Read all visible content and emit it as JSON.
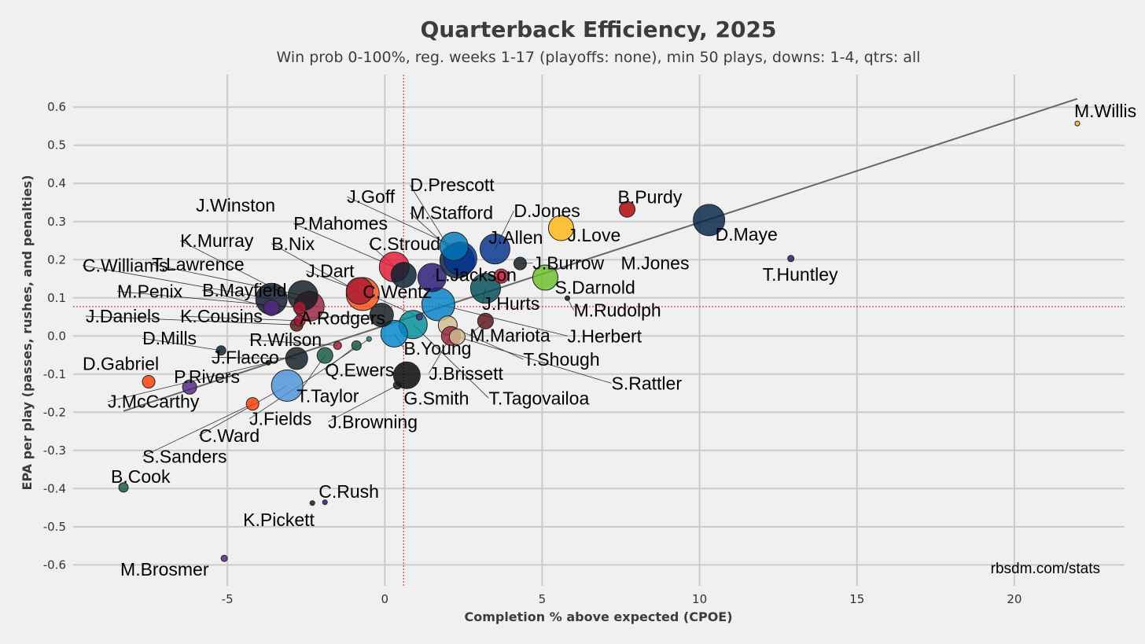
{
  "chart_data": {
    "type": "scatter",
    "title": "Quarterback Efficiency, 2025",
    "subtitle": "Win prob 0-100%, reg. weeks 1-17 (playoffs: none), min 50 plays, downs: 1-4, qtrs: all",
    "xlabel": "Completion % above expected (CPOE)",
    "ylabel": "EPA per play (passes, rushes, and penalties)",
    "credit": "rbsdm.com/stats",
    "xlim": [
      -9.9,
      23.5
    ],
    "ylim": [
      -0.655,
      0.685
    ],
    "xticks": [
      -5,
      0,
      5,
      10,
      15,
      20
    ],
    "xtick_labels": [
      "-5",
      "0",
      "5",
      "10",
      "15",
      "20"
    ],
    "yticks": [
      0.6,
      0.5,
      0.4,
      0.3,
      0.2,
      0.1,
      0.0,
      -0.1,
      -0.2,
      -0.3,
      -0.4,
      -0.5,
      -0.6
    ],
    "ytick_labels": [
      "0.6",
      "0.5",
      "0.4",
      "0.3",
      "0.2",
      "0.1",
      "0.0",
      "-0.1",
      "-0.2",
      "-0.3",
      "-0.4",
      "-0.5",
      "-0.6"
    ],
    "mean_x": 0.6,
    "mean_y": 0.077,
    "trend": {
      "x1": -8.3,
      "y1": -0.197,
      "x2": 22.0,
      "y2": 0.622
    },
    "points": [
      {
        "name": "M.Willis",
        "cpoe": 22.0,
        "epa": 0.557,
        "size": 3,
        "color": "#ffb612"
      },
      {
        "name": "D.Maye",
        "cpoe": 10.3,
        "epa": 0.304,
        "size": 20,
        "color": "#002244"
      },
      {
        "name": "B.Purdy",
        "cpoe": 7.7,
        "epa": 0.332,
        "size": 10,
        "color": "#aa0000"
      },
      {
        "name": "T.Huntley",
        "cpoe": 12.9,
        "epa": 0.203,
        "size": 4,
        "color": "#241773"
      },
      {
        "name": "J.Love",
        "cpoe": 5.6,
        "epa": 0.283,
        "size": 16,
        "color": "#ffb612"
      },
      {
        "name": "D.Jones",
        "cpoe": 3.5,
        "epa": 0.228,
        "size": 19,
        "color": "#003087"
      },
      {
        "name": "J.Burrow",
        "cpoe": 4.3,
        "epa": 0.19,
        "size": 8,
        "color": "#101820"
      },
      {
        "name": "S.Darnold",
        "cpoe": 5.1,
        "epa": 0.153,
        "size": 16,
        "color": "#69be28"
      },
      {
        "name": "M.Rudolph",
        "cpoe": 5.8,
        "epa": 0.099,
        "size": 3,
        "color": "#101820"
      },
      {
        "name": "M.Jones",
        "cpoe": 3.7,
        "epa": 0.157,
        "size": 9,
        "color": "#c60c30"
      },
      {
        "name": "J.Hurts",
        "cpoe": 3.2,
        "epa": 0.125,
        "size": 19,
        "color": "#004c54"
      },
      {
        "name": "J.Herbert",
        "cpoe": 1.7,
        "epa": 0.083,
        "size": 21,
        "color": "#0080c6"
      },
      {
        "name": "J.Goff",
        "cpoe": 2.2,
        "epa": 0.235,
        "size": 18,
        "color": "#0076b6"
      },
      {
        "name": "D.Prescott",
        "cpoe": 2.3,
        "epa": 0.197,
        "size": 22,
        "color": "#041e42"
      },
      {
        "name": "M.Stafford",
        "cpoe": 2.4,
        "epa": 0.203,
        "size": 21,
        "color": "#003594"
      },
      {
        "name": "L.Jackson",
        "cpoe": 1.5,
        "epa": 0.153,
        "size": 18,
        "color": "#241773"
      },
      {
        "name": "C.Stroud",
        "cpoe": 0.6,
        "epa": 0.16,
        "size": 16,
        "color": "#03202f"
      },
      {
        "name": "P.Mahomes",
        "cpoe": 0.3,
        "epa": 0.181,
        "size": 19,
        "color": "#e31837"
      },
      {
        "name": "C.Wentz",
        "cpoe": 1.1,
        "epa": 0.05,
        "size": 4,
        "color": "#4f2683"
      },
      {
        "name": "M.Mariota",
        "cpoe": 3.2,
        "epa": 0.039,
        "size": 10,
        "color": "#5a1414"
      },
      {
        "name": "T.Shough",
        "cpoe": 2.0,
        "epa": 0.028,
        "size": 12,
        "color": "#d3bc8d"
      },
      {
        "name": "S.Rattler",
        "cpoe": 2.3,
        "epa": -0.002,
        "size": 10,
        "color": "#d3bc8d"
      },
      {
        "name": "J.Brissett",
        "cpoe": 2.1,
        "epa": 0.0,
        "size": 12,
        "color": "#97233f"
      },
      {
        "name": "T.Tagovailoa",
        "cpoe": 0.9,
        "epa": 0.03,
        "size": 18,
        "color": "#008e97"
      },
      {
        "name": "B.Young",
        "cpoe": 0.3,
        "epa": 0.006,
        "size": 17,
        "color": "#0085ca"
      },
      {
        "name": "G.Smith",
        "cpoe": 0.7,
        "epa": -0.103,
        "size": 17,
        "color": "#000000"
      },
      {
        "name": "J.Browning",
        "cpoe": 0.4,
        "epa": -0.129,
        "size": 5,
        "color": "#101820"
      },
      {
        "name": "A.Rodgers",
        "cpoe": -0.1,
        "epa": 0.055,
        "size": 15,
        "color": "#101820"
      },
      {
        "name": "J.Dart",
        "cpoe": -0.8,
        "epa": 0.118,
        "size": 17,
        "color": "#a71930"
      },
      {
        "name": "B.Nix",
        "cpoe": -0.7,
        "epa": 0.11,
        "size": 21,
        "color": "#fb4f14"
      },
      {
        "name": "K.Murray",
        "cpoe": -2.4,
        "epa": 0.078,
        "size": 19,
        "color": "#97233f"
      },
      {
        "name": "T.Lawrence",
        "cpoe": -2.6,
        "epa": 0.106,
        "size": 19,
        "color": "#101820"
      },
      {
        "name": "C.Williams",
        "cpoe": -3.6,
        "epa": 0.097,
        "size": 20,
        "color": "#0b162a"
      },
      {
        "name": "B.Mayfield",
        "cpoe": -3.6,
        "epa": 0.074,
        "size": 10,
        "color": "#4f2683"
      },
      {
        "name": "M.Penix",
        "cpoe": -2.7,
        "epa": 0.074,
        "size": 8,
        "color": "#a71930"
      },
      {
        "name": "J.Daniels",
        "cpoe": -2.8,
        "epa": 0.029,
        "size": 8,
        "color": "#5a1414"
      },
      {
        "name": "K.Cousins",
        "cpoe": -2.7,
        "epa": 0.04,
        "size": 7,
        "color": "#a71930"
      },
      {
        "name": "R.Wilson",
        "cpoe": -1.5,
        "epa": -0.025,
        "size": 5,
        "color": "#a71930"
      },
      {
        "name": "J.Flacco",
        "cpoe": -2.8,
        "epa": -0.059,
        "size": 14,
        "color": "#101820"
      },
      {
        "name": "Q.Ewers",
        "cpoe": -0.9,
        "epa": -0.025,
        "size": 6,
        "color": "#125740"
      },
      {
        "name": "T.Taylor",
        "cpoe": -1.9,
        "epa": -0.051,
        "size": 10,
        "color": "#125740"
      },
      {
        "name": "J.Fields",
        "cpoe": -0.5,
        "epa": -0.008,
        "size": 3,
        "color": "#008e97"
      },
      {
        "name": "C.Ward",
        "cpoe": -3.1,
        "epa": -0.13,
        "size": 20,
        "color": "#4b92db"
      },
      {
        "name": "S.Sanders",
        "cpoe": -4.2,
        "epa": -0.178,
        "size": 8,
        "color": "#ff3c00"
      },
      {
        "name": "D.Mills",
        "cpoe": -5.2,
        "epa": -0.038,
        "size": 6,
        "color": "#03202f"
      },
      {
        "name": "D.Gabriel",
        "cpoe": -7.5,
        "epa": -0.12,
        "size": 8,
        "color": "#ff3c00"
      },
      {
        "name": "P.Rivers",
        "cpoe": -6.2,
        "epa": -0.134,
        "size": 9,
        "color": "#4f2683"
      },
      {
        "name": "J.McCarthy",
        "cpoe": -3.7,
        "epa": -0.07,
        "size": 3,
        "color": "#0b162a"
      },
      {
        "name": "B.Cook",
        "cpoe": -8.3,
        "epa": -0.397,
        "size": 6,
        "color": "#125740"
      },
      {
        "name": "C.Rush",
        "cpoe": -1.9,
        "epa": -0.436,
        "size": 3,
        "color": "#241773"
      },
      {
        "name": "K.Pickett",
        "cpoe": -2.3,
        "epa": -0.438,
        "size": 3,
        "color": "#101820"
      },
      {
        "name": "M.Brosmer",
        "cpoe": -5.1,
        "epa": -0.583,
        "size": 4,
        "color": "#4f2683"
      }
    ],
    "labels": [
      {
        "name": "M.Willis",
        "lx": 21.9,
        "ly": 0.59,
        "leader": false
      },
      {
        "name": "D.Maye",
        "lx": 10.5,
        "ly": 0.266,
        "leader": false
      },
      {
        "name": "B.Purdy",
        "lx": 7.4,
        "ly": 0.364,
        "leader": false
      },
      {
        "name": "T.Huntley",
        "lx": 12.0,
        "ly": 0.161,
        "leader": false
      },
      {
        "name": "J.Love",
        "lx": 5.8,
        "ly": 0.264,
        "leader": false
      },
      {
        "name": "D.Jones",
        "lx": 4.1,
        "ly": 0.328,
        "leader": true
      },
      {
        "name": "J.Allen",
        "lx": 3.3,
        "ly": 0.258,
        "leader": true
      },
      {
        "name": "J.Burrow",
        "lx": 4.7,
        "ly": 0.191,
        "leader": true
      },
      {
        "name": "M.Jones",
        "lx": 7.5,
        "ly": 0.191,
        "leader": false
      },
      {
        "name": "S.Darnold",
        "lx": 5.4,
        "ly": 0.127,
        "leader": false
      },
      {
        "name": "M.Rudolph",
        "lx": 6.0,
        "ly": 0.068,
        "leader": true
      },
      {
        "name": "J.Hurts",
        "lx": 3.1,
        "ly": 0.085,
        "leader": true
      },
      {
        "name": "J.Herbert",
        "lx": 5.8,
        "ly": 0.0,
        "leader": true
      },
      {
        "name": "M.Mariota",
        "lx": 2.7,
        "ly": 0.002,
        "leader": true
      },
      {
        "name": "T.Shough",
        "lx": 4.4,
        "ly": -0.061,
        "leader": true
      },
      {
        "name": "S.Rattler",
        "lx": 7.2,
        "ly": -0.124,
        "leader": true
      },
      {
        "name": "J.Brissett",
        "lx": 1.4,
        "ly": -0.098,
        "leader": true
      },
      {
        "name": "T.Tagovailoa",
        "lx": 3.3,
        "ly": -0.163,
        "leader": true
      },
      {
        "name": "G.Smith",
        "lx": 0.6,
        "ly": -0.163,
        "leader": false
      },
      {
        "name": "J.Browning",
        "lx": -1.8,
        "ly": -0.225,
        "leader": true
      },
      {
        "name": "B.Young",
        "lx": 0.6,
        "ly": -0.032,
        "leader": true
      },
      {
        "name": "J.Goff",
        "lx": -1.2,
        "ly": 0.365,
        "leader": true
      },
      {
        "name": "D.Prescott",
        "lx": 0.8,
        "ly": 0.396,
        "leader": true
      },
      {
        "name": "M.Stafford",
        "lx": 0.8,
        "ly": 0.323,
        "leader": true
      },
      {
        "name": "C.Stroud",
        "lx": -0.5,
        "ly": 0.242,
        "leader": true
      },
      {
        "name": "L.Jackson",
        "lx": 1.6,
        "ly": 0.16,
        "leader": true
      },
      {
        "name": "P.Mahomes",
        "lx": -2.9,
        "ly": 0.295,
        "leader": true
      },
      {
        "name": "C.Wentz",
        "lx": -0.7,
        "ly": 0.116,
        "leader": true
      },
      {
        "name": "A.Rodgers",
        "lx": -2.7,
        "ly": 0.047,
        "leader": true
      },
      {
        "name": "J.Dart",
        "lx": -2.5,
        "ly": 0.171,
        "leader": true
      },
      {
        "name": "B.Nix",
        "lx": -3.6,
        "ly": 0.242,
        "leader": true
      },
      {
        "name": "K.Murray",
        "lx": -6.5,
        "ly": 0.25,
        "leader": true
      },
      {
        "name": "T.Lawrence",
        "lx": -7.4,
        "ly": 0.188,
        "leader": true
      },
      {
        "name": "C.Williams",
        "lx": -9.6,
        "ly": 0.185,
        "leader": true
      },
      {
        "name": "B.Mayfield",
        "lx": -5.8,
        "ly": 0.12,
        "leader": true
      },
      {
        "name": "M.Penix",
        "lx": -8.5,
        "ly": 0.117,
        "leader": true
      },
      {
        "name": "J.Daniels",
        "lx": -9.5,
        "ly": 0.052,
        "leader": true
      },
      {
        "name": "K.Cousins",
        "lx": -6.5,
        "ly": 0.052,
        "leader": true
      },
      {
        "name": "D.Mills",
        "lx": -7.7,
        "ly": -0.006,
        "leader": true
      },
      {
        "name": "R.Wilson",
        "lx": -4.3,
        "ly": -0.01,
        "leader": true
      },
      {
        "name": "J.Winston",
        "lx": -6.0,
        "ly": 0.343,
        "leader": true
      },
      {
        "name": "J.Flacco",
        "lx": -5.5,
        "ly": -0.056,
        "leader": true
      },
      {
        "name": "Q.Ewers",
        "lx": -1.9,
        "ly": -0.089,
        "leader": true
      },
      {
        "name": "T.Taylor",
        "lx": -2.8,
        "ly": -0.157,
        "leader": true
      },
      {
        "name": "J.Fields",
        "lx": -4.3,
        "ly": -0.217,
        "leader": true
      },
      {
        "name": "C.Ward",
        "lx": -5.9,
        "ly": -0.261,
        "leader": true
      },
      {
        "name": "S.Sanders",
        "lx": -7.7,
        "ly": -0.316,
        "leader": true
      },
      {
        "name": "D.Gabriel",
        "lx": -9.6,
        "ly": -0.073,
        "leader": false
      },
      {
        "name": "P.Rivers",
        "lx": -6.7,
        "ly": -0.107,
        "leader": false
      },
      {
        "name": "J.McCarthy",
        "lx": -8.8,
        "ly": -0.172,
        "leader": true
      },
      {
        "name": "B.Cook",
        "lx": -8.7,
        "ly": -0.368,
        "leader": false
      },
      {
        "name": "C.Rush",
        "lx": -2.1,
        "ly": -0.408,
        "leader": false
      },
      {
        "name": "K.Pickett",
        "lx": -4.5,
        "ly": -0.482,
        "leader": false
      },
      {
        "name": "M.Brosmer",
        "lx": -8.4,
        "ly": -0.612,
        "leader": false
      }
    ]
  }
}
